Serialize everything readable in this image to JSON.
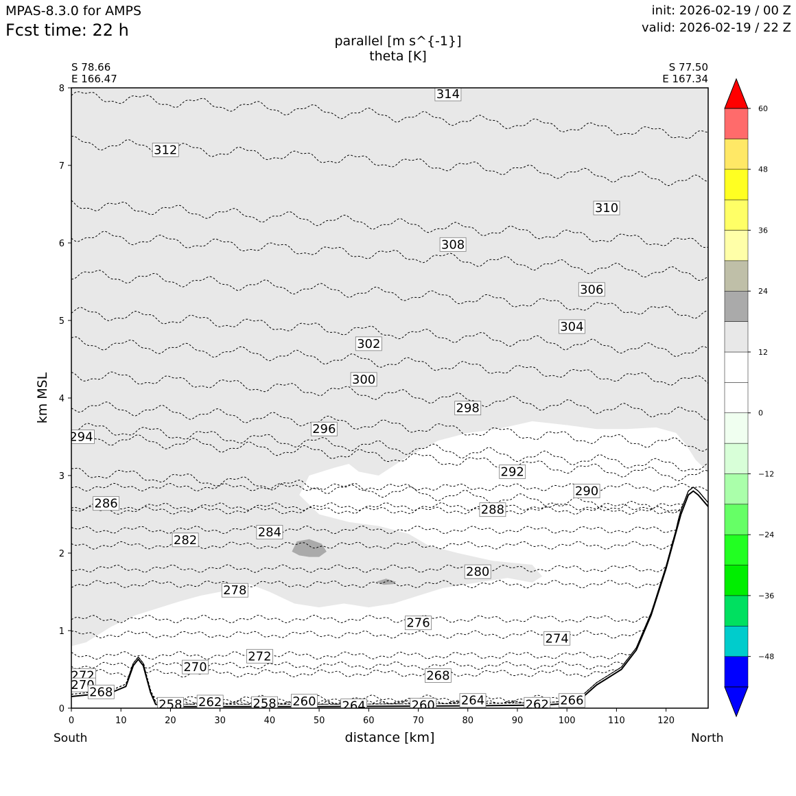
{
  "header": {
    "model": "MPAS-8.3.0 for AMPS",
    "fcst_label": "Fcst time:   22 h",
    "init": "init: 2026-02-19 / 00 Z",
    "valid": "valid: 2026-02-19 / 22 Z"
  },
  "chart_data": {
    "type": "cross-section",
    "title_lines": [
      "parallel [m s^{-1}]",
      "theta [K]"
    ],
    "xlabel": "distance [km]",
    "ylabel": "km MSL",
    "xlim": [
      0,
      128.5
    ],
    "ylim": [
      0,
      8
    ],
    "x_ticks": [
      0,
      10,
      20,
      30,
      40,
      50,
      60,
      70,
      80,
      90,
      100,
      110,
      120
    ],
    "y_ticks": [
      0,
      1,
      2,
      3,
      4,
      5,
      6,
      7,
      8
    ],
    "start_point": {
      "lat": "S 78.66",
      "lon": "E 166.47",
      "end_label": "South"
    },
    "end_point": {
      "lat": "S 77.50",
      "lon": "E 167.34",
      "end_label": "North"
    },
    "colorbar": {
      "levels": [
        -54,
        -48,
        -42,
        -36,
        -30,
        -24,
        -18,
        -12,
        -6,
        0,
        6,
        12,
        18,
        24,
        30,
        36,
        42,
        48,
        54,
        60
      ],
      "colors": [
        "#0000ff",
        "#00cccc",
        "#00e060",
        "#00ee00",
        "#22ff22",
        "#66ff66",
        "#aaffaa",
        "#d8ffd8",
        "#f0fff0",
        "#ffffff",
        "#ffffff",
        "#e8e8e8",
        "#aaaaaa",
        "#bfbfa8",
        "#ffffa8",
        "#ffff66",
        "#ffff22",
        "#ffe866",
        "#ff6b6b",
        "#ff0000"
      ],
      "tick_values": [
        -48,
        -36,
        -24,
        -12,
        0,
        12,
        24,
        36,
        48,
        60
      ],
      "tick_labels": [
        "−48",
        "−36",
        "−24",
        "−12",
        "0",
        "12",
        "24",
        "36",
        "48",
        "60"
      ],
      "extend": "both",
      "under_color": "#0000ff",
      "over_color": "#ff0000"
    },
    "terrain": [
      [
        0,
        0.15
      ],
      [
        8,
        0.2
      ],
      [
        11,
        0.28
      ],
      [
        12.5,
        0.55
      ],
      [
        13.5,
        0.63
      ],
      [
        14.5,
        0.55
      ],
      [
        16,
        0.2
      ],
      [
        17,
        0.05
      ],
      [
        20,
        0.02
      ],
      [
        50,
        0.02
      ],
      [
        80,
        0.03
      ],
      [
        95,
        0.04
      ],
      [
        100,
        0.06
      ],
      [
        103,
        0.13
      ],
      [
        106,
        0.3
      ],
      [
        108,
        0.38
      ],
      [
        111,
        0.5
      ],
      [
        114,
        0.75
      ],
      [
        117,
        1.2
      ],
      [
        120,
        1.8
      ],
      [
        123,
        2.5
      ],
      [
        124.5,
        2.75
      ],
      [
        125.5,
        2.8
      ],
      [
        126.5,
        2.75
      ],
      [
        128.5,
        2.6
      ]
    ],
    "theta_contours": [
      {
        "level": 314,
        "base": 7.9,
        "label_x": 76,
        "label_y": 7.92
      },
      {
        "level": 312,
        "base": 7.3,
        "label_x": 19,
        "label_y": 7.2
      },
      {
        "level": 310,
        "base": 6.5,
        "label_x": 108,
        "label_y": 6.45
      },
      {
        "level": 308,
        "base": 6.1,
        "label_x": 77,
        "label_y": 5.98
      },
      {
        "level": 306,
        "base": 5.6,
        "label_x": 105,
        "label_y": 5.4
      },
      {
        "level": 304,
        "base": 5.1,
        "label_x": 101,
        "label_y": 4.92
      },
      {
        "level": 302,
        "base": 4.72,
        "label_x": 60,
        "label_y": 4.7
      },
      {
        "level": 300,
        "base": 4.3,
        "label_x": 59,
        "label_y": 4.24
      },
      {
        "level": 298,
        "base": 3.9,
        "label_x": 80,
        "label_y": 3.87
      },
      {
        "level": 296,
        "base": 3.62,
        "label_x": 51,
        "label_y": 3.6
      },
      {
        "level": 294,
        "base": 3.5,
        "label_x": 2,
        "label_y": 3.5
      },
      {
        "level": 292,
        "base": 3.05,
        "label_x": 89,
        "label_y": 3.05
      },
      {
        "level": 290,
        "base": 2.85,
        "label_x": 104,
        "label_y": 2.8
      },
      {
        "level": 288,
        "base": 2.6,
        "label_x": 85,
        "label_y": 2.56
      },
      {
        "level": 286,
        "base": 2.55,
        "label_x": 7,
        "label_y": 2.64
      },
      {
        "level": 284,
        "base": 2.3,
        "label_x": 40,
        "label_y": 2.27
      },
      {
        "level": 282,
        "base": 2.1,
        "label_x": 23,
        "label_y": 2.17
      },
      {
        "level": 280,
        "base": 1.8,
        "label_x": 82,
        "label_y": 1.76
      },
      {
        "level": 278,
        "base": 1.6,
        "label_x": 33,
        "label_y": 1.52
      },
      {
        "level": 276,
        "base": 1.15,
        "label_x": 70,
        "label_y": 1.1
      },
      {
        "level": 274,
        "base": 0.95,
        "label_x": 98,
        "label_y": 0.9
      },
      {
        "level": 272,
        "base": 0.68,
        "label_x": 38,
        "label_y": 0.67
      },
      {
        "level": 270,
        "base": 0.55,
        "label_x": 25,
        "label_y": 0.53
      },
      {
        "level": 268,
        "base": 0.45,
        "label_x": 74,
        "label_y": 0.42
      },
      {
        "level": 266,
        "base": 0.12,
        "label_x": 101,
        "label_y": 0.1
      },
      {
        "level": 264,
        "base": 0.06,
        "label_x": 81,
        "label_y": 0.1
      },
      {
        "level": 262,
        "base": 0.05,
        "label_x": 28,
        "label_y": 0.08
      },
      {
        "level": 260,
        "base": 0.05,
        "label_x": 47,
        "label_y": 0.09
      },
      {
        "level": 258,
        "base": 0.05,
        "label_x": 39,
        "label_y": 0.06
      }
    ],
    "extra_contour_labels": [
      {
        "level": 272,
        "x": 2.3,
        "y": 0.42
      },
      {
        "level": 270,
        "x": 2.3,
        "y": 0.3
      },
      {
        "level": 268,
        "x": 6,
        "y": 0.21
      },
      {
        "level": 258,
        "x": 20,
        "y": 0.05
      },
      {
        "level": 264,
        "x": 57,
        "y": 0.03
      },
      {
        "level": 260,
        "x": 71,
        "y": 0.04
      },
      {
        "level": 262,
        "x": 94,
        "y": 0.05
      }
    ],
    "wind_shading": [
      {
        "level_range": [
          6,
          12
        ],
        "color": "#e8e8e8",
        "polygon": [
          [
            0,
            0.8
          ],
          [
            3,
            0.85
          ],
          [
            8,
            1.05
          ],
          [
            13,
            1.2
          ],
          [
            18,
            1.3
          ],
          [
            22,
            1.38
          ],
          [
            26,
            1.45
          ],
          [
            30,
            1.5
          ],
          [
            34,
            1.55
          ],
          [
            36,
            1.6
          ],
          [
            40,
            1.5
          ],
          [
            45,
            1.35
          ],
          [
            50,
            1.3
          ],
          [
            55,
            1.35
          ],
          [
            60,
            1.3
          ],
          [
            65,
            1.35
          ],
          [
            70,
            1.45
          ],
          [
            75,
            1.55
          ],
          [
            82,
            1.62
          ],
          [
            88,
            1.68
          ],
          [
            93,
            1.62
          ],
          [
            95,
            1.7
          ],
          [
            93,
            1.85
          ],
          [
            85,
            1.9
          ],
          [
            78,
            2.0
          ],
          [
            72,
            2.1
          ],
          [
            68,
            2.25
          ],
          [
            62,
            2.35
          ],
          [
            56,
            2.4
          ],
          [
            50,
            2.5
          ],
          [
            46,
            2.75
          ],
          [
            48,
            3.0
          ],
          [
            53,
            3.1
          ],
          [
            56,
            3.15
          ],
          [
            58,
            3.05
          ],
          [
            62,
            3.0
          ],
          [
            68,
            3.25
          ],
          [
            74,
            3.45
          ],
          [
            80,
            3.55
          ],
          [
            86,
            3.6
          ],
          [
            93,
            3.7
          ],
          [
            100,
            3.65
          ],
          [
            106,
            3.6
          ],
          [
            112,
            3.6
          ],
          [
            118,
            3.62
          ],
          [
            122,
            3.55
          ],
          [
            124,
            3.4
          ],
          [
            126,
            3.2
          ],
          [
            128.5,
            3.05
          ],
          [
            128.5,
            8
          ],
          [
            0,
            8
          ]
        ]
      },
      {
        "level_range": [
          12,
          18
        ],
        "color": "#aaaaaa",
        "polygon": [
          [
            44.5,
            2.02
          ],
          [
            46,
            1.97
          ],
          [
            48,
            1.95
          ],
          [
            50,
            1.95
          ],
          [
            51.5,
            2.02
          ],
          [
            50.5,
            2.12
          ],
          [
            48,
            2.18
          ],
          [
            45.5,
            2.15
          ]
        ]
      },
      {
        "level_range": [
          12,
          18
        ],
        "color": "#aaaaaa",
        "polygon": [
          [
            61.5,
            1.63
          ],
          [
            63,
            1.59
          ],
          [
            65,
            1.6
          ],
          [
            65.5,
            1.63
          ],
          [
            63.5,
            1.67
          ]
        ]
      }
    ]
  }
}
